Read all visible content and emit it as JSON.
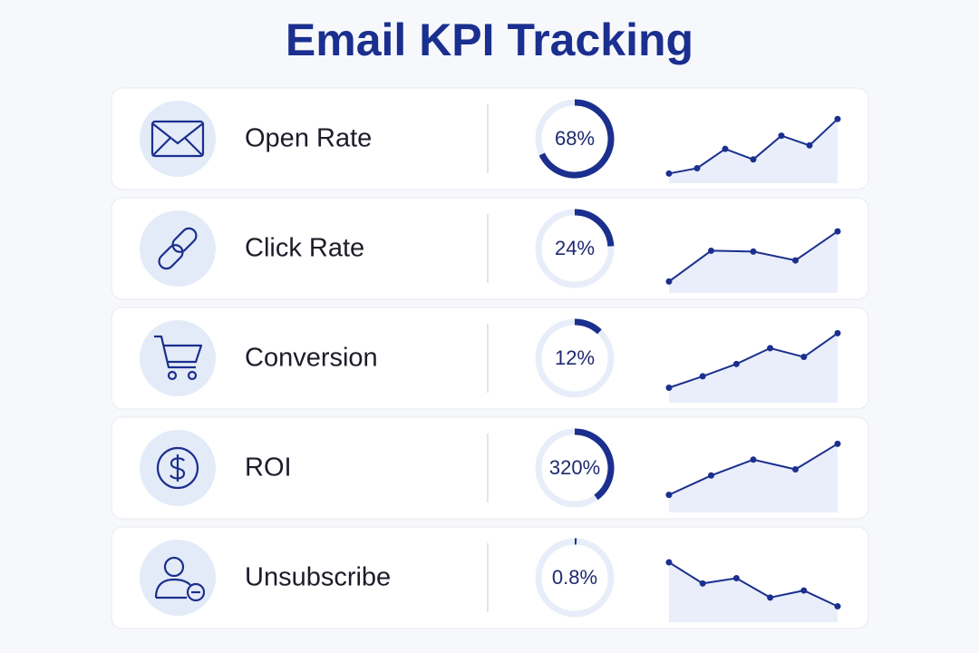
{
  "title": "Email KPI Tracking",
  "spark_ylim": [
    0,
    10
  ],
  "rows": [
    {
      "label": "Open Rate",
      "value": 68,
      "value_label": "68%",
      "ring_max": 100,
      "trend": [
        1.1,
        1.7,
        3.9,
        2.7,
        5.4,
        4.3,
        7.3
      ]
    },
    {
      "label": "Click Rate",
      "value": 24,
      "value_label": "24%",
      "ring_max": 100,
      "trend": [
        1.3,
        4.8,
        4.7,
        3.7,
        7.0
      ]
    },
    {
      "label": "Conversion",
      "value": 12,
      "value_label": "12%",
      "ring_max": 100,
      "trend": [
        1.7,
        3.0,
        4.4,
        6.2,
        5.2,
        7.9
      ]
    },
    {
      "label": "ROI",
      "value": 320,
      "value_label": "320%",
      "ring_max": 800,
      "trend": [
        2.0,
        4.2,
        6.0,
        4.9,
        7.8
      ]
    },
    {
      "label": "Unsubscribe",
      "value": 0.8,
      "value_label": "0.8%",
      "ring_max": 100,
      "trend": [
        6.8,
        4.4,
        5.0,
        2.8,
        3.6,
        1.8
      ]
    }
  ]
}
